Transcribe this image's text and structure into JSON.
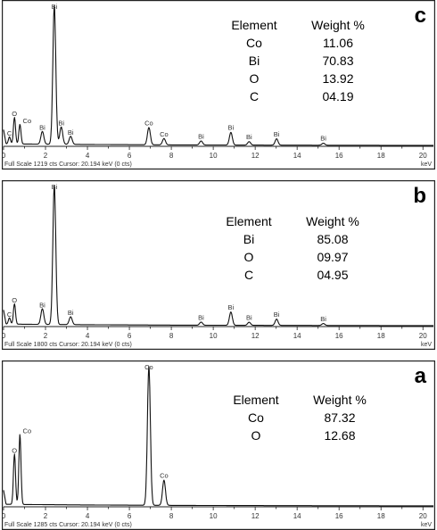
{
  "chart_data": [
    {
      "panel": "c",
      "type": "line",
      "status": "Full Scale 1219 cts  Cursor: 20.194 keV (0 cts)",
      "x_unit": "keV",
      "xlim": [
        0,
        20.5
      ],
      "ylim": [
        0,
        1219
      ],
      "x_ticks": [
        "0",
        "2",
        "4",
        "6",
        "8",
        "10",
        "12",
        "14",
        "16",
        "18",
        "20"
      ],
      "peaks": [
        {
          "label": "C",
          "x": 0.28,
          "y": 60
        },
        {
          "label": "O",
          "x": 0.52,
          "y": 230
        },
        {
          "label": "Co",
          "x": 0.78,
          "y": 170
        },
        {
          "label": "Bi",
          "x": 1.85,
          "y": 110
        },
        {
          "label": "Bi",
          "x": 2.42,
          "y": 1200
        },
        {
          "label": "Bi",
          "x": 2.75,
          "y": 150
        },
        {
          "label": "Bi",
          "x": 3.2,
          "y": 70
        },
        {
          "label": "Co",
          "x": 6.93,
          "y": 150
        },
        {
          "label": "Co",
          "x": 7.65,
          "y": 55
        },
        {
          "label": "Bi",
          "x": 9.42,
          "y": 35
        },
        {
          "label": "Bi",
          "x": 10.84,
          "y": 110
        },
        {
          "label": "Bi",
          "x": 11.71,
          "y": 30
        },
        {
          "label": "Bi",
          "x": 13.02,
          "y": 55
        },
        {
          "label": "Bi",
          "x": 15.25,
          "y": 18
        }
      ],
      "composition": {
        "header": [
          "Element",
          "Weight %"
        ],
        "rows": [
          [
            "Co",
            "11.06"
          ],
          [
            "Bi",
            "70.83"
          ],
          [
            "O",
            "13.92"
          ],
          [
            "C",
            "04.19"
          ]
        ]
      }
    },
    {
      "panel": "b",
      "type": "line",
      "status": "Full Scale 1800 cts  Cursor: 20.194 keV (0 cts)",
      "x_unit": "keV",
      "xlim": [
        0,
        20.5
      ],
      "ylim": [
        0,
        1800
      ],
      "x_ticks": [
        "0",
        "2",
        "4",
        "6",
        "8",
        "10",
        "12",
        "14",
        "16",
        "18",
        "20"
      ],
      "peaks": [
        {
          "label": "C",
          "x": 0.28,
          "y": 80
        },
        {
          "label": "O",
          "x": 0.52,
          "y": 260
        },
        {
          "label": "Bi",
          "x": 1.85,
          "y": 200
        },
        {
          "label": "Bi",
          "x": 2.42,
          "y": 1780
        },
        {
          "label": "Bi",
          "x": 3.2,
          "y": 100
        },
        {
          "label": "Bi",
          "x": 9.42,
          "y": 40
        },
        {
          "label": "Bi",
          "x": 10.84,
          "y": 170
        },
        {
          "label": "Bi",
          "x": 11.71,
          "y": 40
        },
        {
          "label": "Bi",
          "x": 13.02,
          "y": 80
        },
        {
          "label": "Bi",
          "x": 15.25,
          "y": 25
        }
      ],
      "composition": {
        "header": [
          "Element",
          "Weight %"
        ],
        "rows": [
          [
            "Bi",
            "85.08"
          ],
          [
            "O",
            "09.97"
          ],
          [
            "C",
            "04.95"
          ]
        ]
      }
    },
    {
      "panel": "a",
      "type": "line",
      "status": "Full Scale 1285 cts  Cursor: 20.194 keV (0 cts)",
      "x_unit": "keV",
      "xlim": [
        0,
        20.5
      ],
      "ylim": [
        0,
        1285
      ],
      "x_ticks": [
        "0",
        "2",
        "4",
        "6",
        "8",
        "10",
        "12",
        "14",
        "16",
        "18",
        "20"
      ],
      "peaks": [
        {
          "label": "O",
          "x": 0.52,
          "y": 460
        },
        {
          "label": "Co",
          "x": 0.78,
          "y": 640
        },
        {
          "label": "Co",
          "x": 6.93,
          "y": 1270
        },
        {
          "label": "Co",
          "x": 7.65,
          "y": 230
        }
      ],
      "composition": {
        "header": [
          "Element",
          "Weight %"
        ],
        "rows": [
          [
            "Co",
            "87.32"
          ],
          [
            "O",
            "12.68"
          ]
        ]
      }
    }
  ],
  "panel_letters": {
    "c": "c",
    "b": "b",
    "a": "a"
  },
  "status_bars": {
    "c": "Full Scale 1219 cts  Cursor: 20.194 keV (0 cts)",
    "b": "Full Scale 1800 cts  Cursor: 20.194 keV (0 cts)",
    "a": "Full Scale 1285 cts  Cursor: 20.194 keV (0 cts)"
  },
  "x_unit": "keV"
}
